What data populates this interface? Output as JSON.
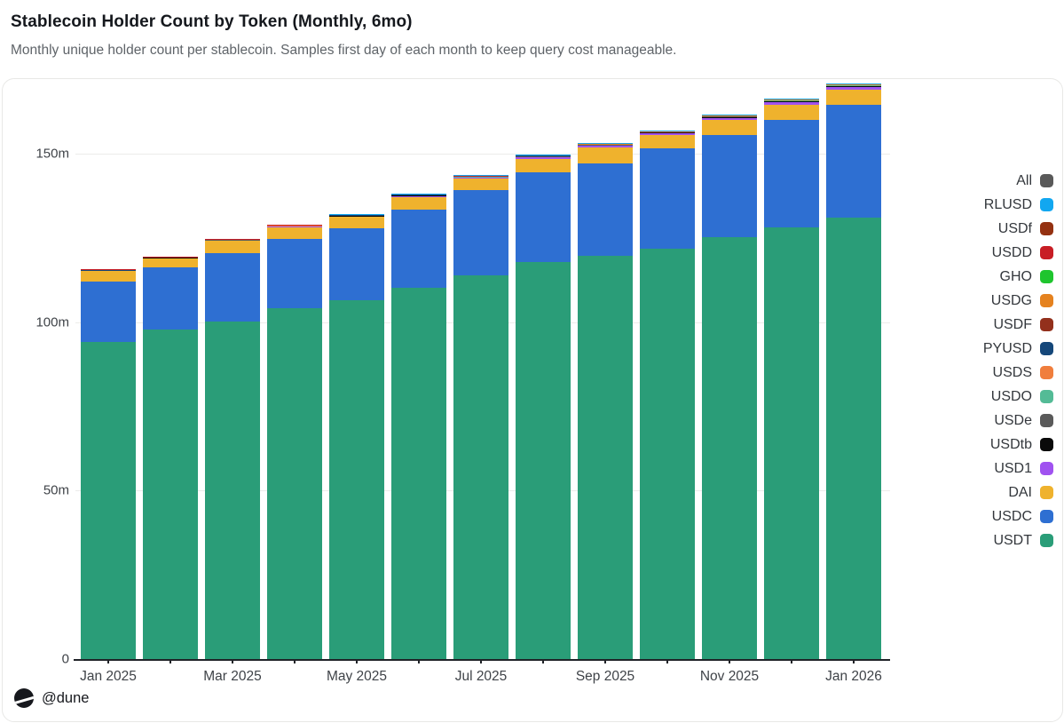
{
  "page": {
    "title": "Stablecoin Holder Count by Token (Monthly, 6mo)",
    "subtitle": "Monthly unique holder count per stablecoin. Samples first day of each month to keep query cost manageable.",
    "attribution": "@dune"
  },
  "chart_data": {
    "type": "bar",
    "stacked": true,
    "title": "Stablecoin Holder Count by Token (Monthly, 6mo)",
    "xlabel": "",
    "ylabel": "",
    "value_unit": "m",
    "ylim": [
      0,
      175
    ],
    "grid": true,
    "legend_position": "right",
    "categories": [
      "Jan 2025",
      "Feb 2025",
      "Mar 2025",
      "Apr 2025",
      "May 2025",
      "Jun 2025",
      "Jul 2025",
      "Aug 2025",
      "Sep 2025",
      "Oct 2025",
      "Nov 2025",
      "Dec 2025",
      "Jan 2026"
    ],
    "x_tick_labels": [
      "Jan 2025",
      "Mar 2025",
      "May 2025",
      "Jul 2025",
      "Sep 2025",
      "Nov 2025",
      "Jan 2026"
    ],
    "y_ticks": [
      {
        "label": "0",
        "value": 0
      },
      {
        "label": "50m",
        "value": 50
      },
      {
        "label": "100m",
        "value": 100
      },
      {
        "label": "150m",
        "value": 150
      }
    ],
    "legend": [
      {
        "label": "All",
        "color": "#595959"
      },
      {
        "label": "RLUSD",
        "color": "#12a7f0"
      },
      {
        "label": "USDf",
        "color": "#943111"
      },
      {
        "label": "USDD",
        "color": "#c81e25"
      },
      {
        "label": "GHO",
        "color": "#1fc52e"
      },
      {
        "label": "USDG",
        "color": "#e5821f"
      },
      {
        "label": "USDF",
        "color": "#93301c"
      },
      {
        "label": "PYUSD",
        "color": "#15477a"
      },
      {
        "label": "USDS",
        "color": "#f07e3d"
      },
      {
        "label": "USDO",
        "color": "#54bb96"
      },
      {
        "label": "USDe",
        "color": "#5a5a5a"
      },
      {
        "label": "USDtb",
        "color": "#0a0a0a"
      },
      {
        "label": "USD1",
        "color": "#a052f0"
      },
      {
        "label": "DAI",
        "color": "#efb22d"
      },
      {
        "label": "USDC",
        "color": "#2e6fd2"
      },
      {
        "label": "USDT",
        "color": "#2a9d78"
      }
    ],
    "series": [
      {
        "name": "USDT",
        "color": "#2a9d78",
        "values": [
          94.2,
          97.7,
          100.3,
          104.1,
          106.4,
          110.1,
          113.9,
          117.9,
          119.7,
          121.9,
          125.3,
          128.0,
          131.1
        ]
      },
      {
        "name": "USDC",
        "color": "#2e6fd2",
        "values": [
          17.8,
          18.6,
          20.2,
          20.7,
          21.5,
          23.4,
          25.4,
          26.6,
          27.3,
          29.7,
          30.3,
          32.1,
          33.3
        ]
      },
      {
        "name": "DAI",
        "color": "#efb22d",
        "values": [
          3.2,
          2.7,
          3.7,
          3.5,
          3.4,
          3.7,
          3.2,
          4.0,
          4.8,
          4.0,
          4.5,
          4.5,
          4.7
        ]
      },
      {
        "name": "USD1",
        "color": "#a052f0",
        "values": [
          0.15,
          0.15,
          0.18,
          0.2,
          0.25,
          0.35,
          0.45,
          0.5,
          0.55,
          0.5,
          0.55,
          0.65,
          0.6
        ]
      },
      {
        "name": "USDtb",
        "color": "#0a0a0a",
        "values": [
          0.04,
          0.05,
          0.06,
          0.07,
          0.08,
          0.1,
          0.12,
          0.15,
          0.17,
          0.2,
          0.24,
          0.28,
          0.33
        ]
      },
      {
        "name": "USDe",
        "color": "#5a5a5a",
        "values": [
          0.08,
          0.09,
          0.1,
          0.11,
          0.13,
          0.15,
          0.17,
          0.19,
          0.22,
          0.25,
          0.28,
          0.31,
          0.35
        ]
      },
      {
        "name": "USDO",
        "color": "#54bb96",
        "values": [
          0.01,
          0.01,
          0.01,
          0.02,
          0.02,
          0.02,
          0.03,
          0.03,
          0.03,
          0.04,
          0.04,
          0.05,
          0.05
        ]
      },
      {
        "name": "USDS",
        "color": "#f07e3d",
        "values": [
          0.03,
          0.03,
          0.04,
          0.04,
          0.05,
          0.05,
          0.06,
          0.06,
          0.07,
          0.07,
          0.08,
          0.09,
          0.1
        ]
      },
      {
        "name": "PYUSD",
        "color": "#15477a",
        "values": [
          0.03,
          0.03,
          0.03,
          0.04,
          0.04,
          0.05,
          0.05,
          0.06,
          0.06,
          0.07,
          0.08,
          0.09,
          0.1
        ]
      },
      {
        "name": "USDF",
        "color": "#93301c",
        "values": [
          0.01,
          0.01,
          0.01,
          0.01,
          0.02,
          0.02,
          0.02,
          0.02,
          0.03,
          0.03,
          0.03,
          0.03,
          0.03
        ]
      },
      {
        "name": "USDG",
        "color": "#e5821f",
        "values": [
          0.01,
          0.01,
          0.01,
          0.01,
          0.02,
          0.02,
          0.02,
          0.02,
          0.03,
          0.03,
          0.03,
          0.03,
          0.03
        ]
      },
      {
        "name": "GHO",
        "color": "#1fc52e",
        "values": [
          0.01,
          0.01,
          0.01,
          0.01,
          0.01,
          0.02,
          0.02,
          0.02,
          0.02,
          0.02,
          0.02,
          0.02,
          0.02
        ]
      },
      {
        "name": "USDD",
        "color": "#c81e25",
        "values": [
          0.04,
          0.04,
          0.04,
          0.05,
          0.05,
          0.05,
          0.05,
          0.06,
          0.06,
          0.06,
          0.06,
          0.07,
          0.07
        ]
      },
      {
        "name": "USDf",
        "color": "#943111",
        "values": [
          0.01,
          0.01,
          0.01,
          0.02,
          0.02,
          0.02,
          0.02,
          0.02,
          0.03,
          0.03,
          0.03,
          0.03,
          0.03
        ]
      },
      {
        "name": "RLUSD",
        "color": "#12a7f0",
        "values": [
          0.01,
          0.01,
          0.02,
          0.02,
          0.03,
          0.03,
          0.04,
          0.05,
          0.06,
          0.07,
          0.08,
          0.09,
          0.1
        ]
      }
    ]
  }
}
